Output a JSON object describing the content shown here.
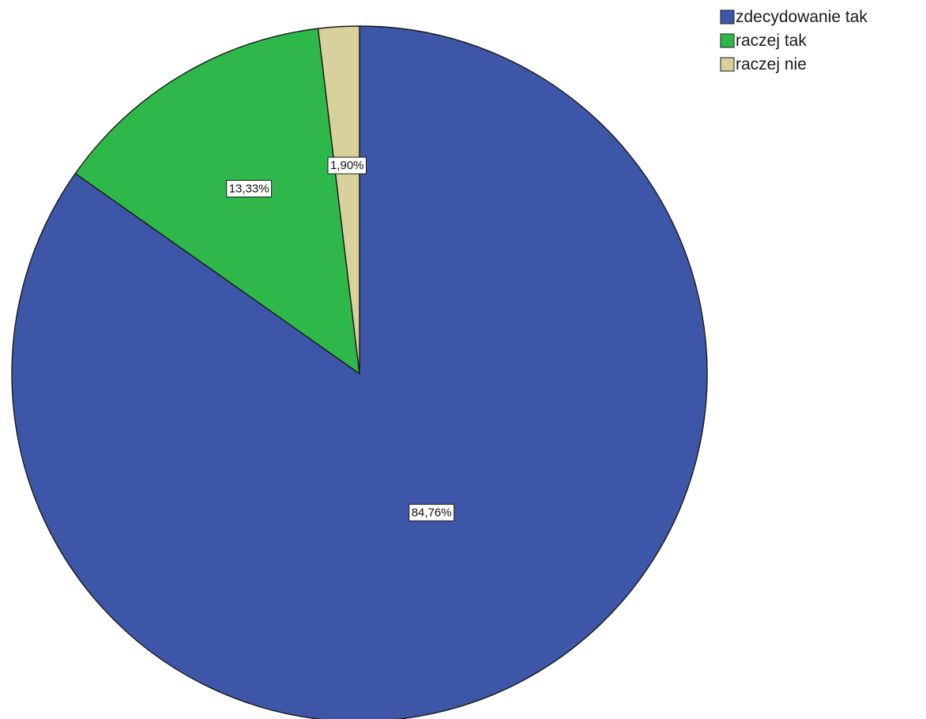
{
  "chart_data": {
    "type": "pie",
    "title": "",
    "categories": [
      "zdecydowanie tak",
      "raczej tak",
      "raczej nie"
    ],
    "values": [
      84.76,
      13.33,
      1.9
    ],
    "data_labels": [
      "84,76%",
      "13,33%",
      "1,90%"
    ],
    "colors": [
      "#3d56a8",
      "#2fb84a",
      "#d8d19c"
    ],
    "start_angle": "12 o'clock",
    "direction": "clockwise",
    "legend": {
      "placement": "top-right",
      "entries": [
        "zdecydowanie tak",
        "raczej tak",
        "raczej nie"
      ]
    }
  }
}
